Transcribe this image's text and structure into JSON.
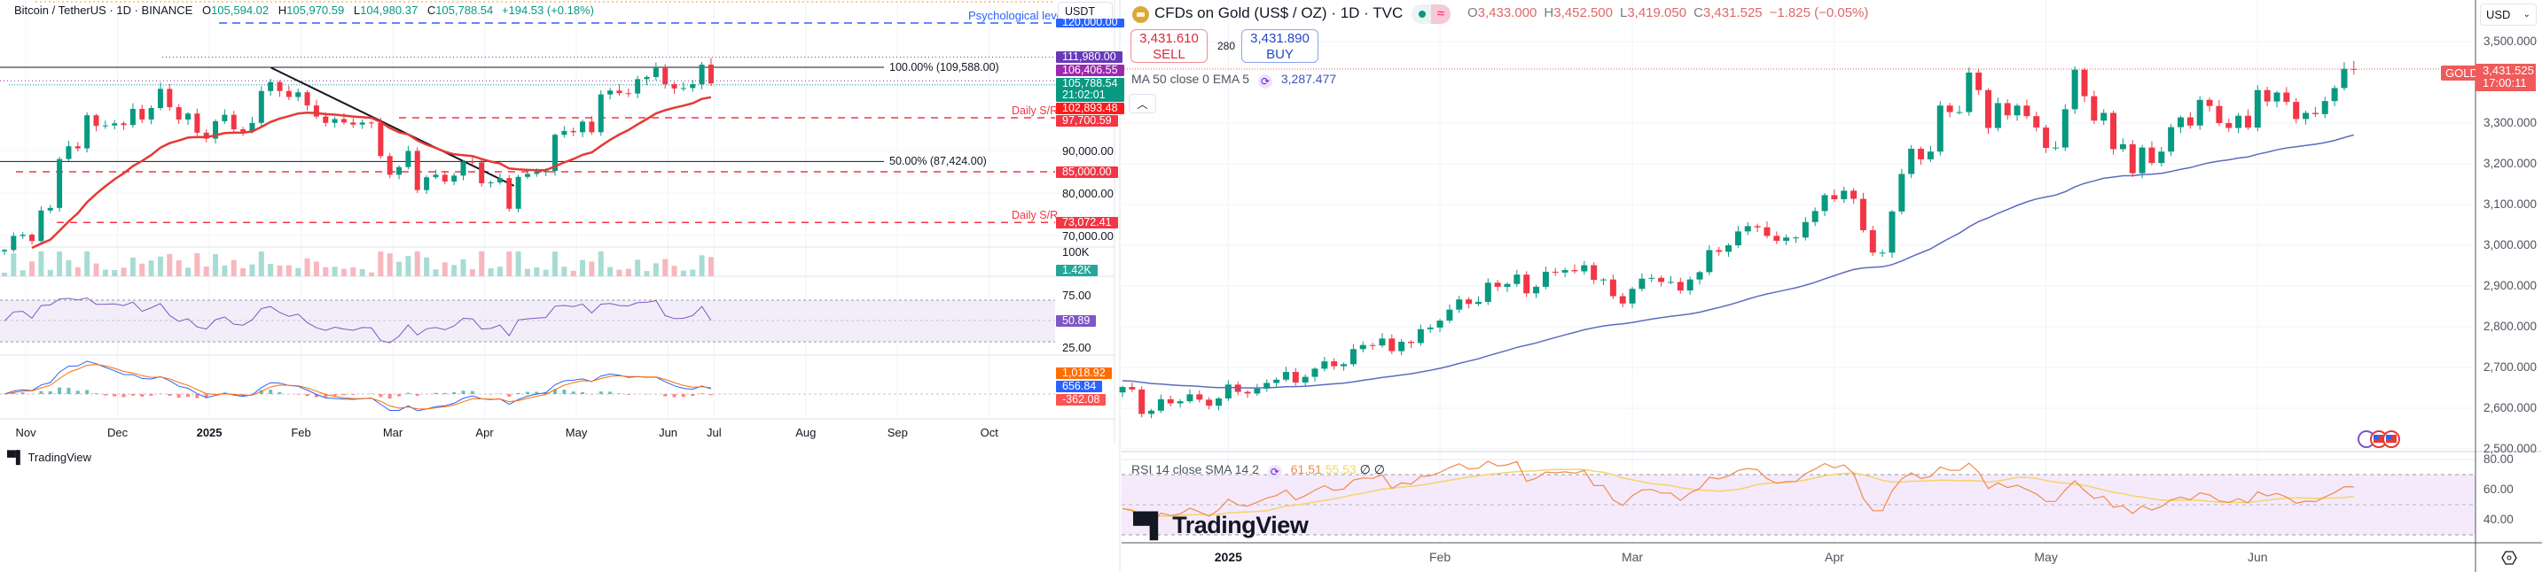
{
  "colors": {
    "up": "#089981",
    "down": "#f23645",
    "ema_red": "#e53935",
    "psych_blue": "#2962ff",
    "tag_111980": "#673ab7",
    "tag_106406": "#9c27b0",
    "tag_price": "#089981",
    "tag_ema": "#ff1a1a",
    "tag_sr": "#f23645",
    "tag_volume": "#26a69a",
    "tag_rsi": "#7e57c2",
    "tag_macd": "#ff6d00",
    "tag_signal": "#2962ff",
    "tag_hist": "#ff5252",
    "gold_ma": "#5c6bc0",
    "gold_rsi": "#f08a4b",
    "gold_rsi_sma": "#f5d36b",
    "gold_tag": "#f05a5a"
  },
  "btc_panel": {
    "header": {
      "symbol": "Bitcoin / TetherUS · 1D · BINANCE",
      "o_label": "O",
      "o": "105,594.02",
      "h_label": "H",
      "h": "105,970.59",
      "l_label": "L",
      "l": "104,980.37",
      "c_label": "C",
      "c": "105,788.54",
      "change": "+194.53 (+0.18%)"
    },
    "currency": "USDT",
    "annotations": {
      "psych": "Psychological level",
      "fib100": "100.00% (109,588.00)",
      "fib50": "50.00% (87,424.00)",
      "sr_upper": "Daily S/R",
      "sr_lower": "Daily S/R"
    },
    "price_ticks": [
      "90,000.00",
      "80,000.00",
      "70,000.00"
    ],
    "volume_tick": "100K",
    "rsi_ticks": [
      "75.00",
      "25.00"
    ],
    "tags": {
      "psych": "120,000.00",
      "high": "111,980.00",
      "p2": "106,406.55",
      "price": "105,788.54",
      "countdown": "21:02:01",
      "ema": "102,893.48",
      "sr1": "97,700.59",
      "support": "85,000.00",
      "sr2": "73,072.41",
      "volume": "1.42K",
      "rsi": "50.89",
      "macd": "1,018.92",
      "signal": "656.84",
      "hist": "-362.08"
    },
    "logo": "TradingView"
  },
  "gold_panel": {
    "title": "CFDs on Gold (US$ / OZ) · 1D · TVC",
    "ohlc": {
      "o_label": "O",
      "o": "3,433.000",
      "h_label": "H",
      "h": "3,452.500",
      "l_label": "L",
      "l": "3,419.050",
      "c_label": "C",
      "c": "3,431.525",
      "change": "−1.825 (−0.05%)"
    },
    "sell": {
      "price": "3,431.610",
      "label": "SELL"
    },
    "spread": "280",
    "buy": {
      "price": "3,431.890",
      "label": "BUY"
    },
    "ma_legend": {
      "label": "MA 50 close 0 EMA 5",
      "value": "3,287.477"
    },
    "rsi_legend": {
      "label": "RSI 14 close SMA 14 2",
      "rsi": "61.51",
      "sma": "55.53",
      "extra1": "∅",
      "extra2": "∅"
    },
    "currency": "USD",
    "price_ticks": [
      "3,500.000",
      "3,300.000",
      "3,200.000",
      "3,100.000",
      "3,000.000",
      "2,900.000",
      "2,800.000",
      "2,700.000",
      "2,600.000",
      "2,500.000"
    ],
    "rsi_ticks": [
      "80.00",
      "60.00",
      "40.00"
    ],
    "price_tag": {
      "symbol": "GOLD",
      "price": "3,431.525",
      "countdown": "17:00:11"
    },
    "logo": "TradingView",
    "icons": {
      "collapse": "chevron-up-icon",
      "settings": "settings-hexagon-icon",
      "events": "us-flag-event-icon"
    }
  },
  "chart_data": [
    {
      "type": "candlestick",
      "symbol": "BTCUSDT",
      "months": [
        {
          "label": "",
          "closes": [
            66600,
            69900,
            70200
          ]
        },
        {
          "label": "Nov",
          "closes": [
            68700,
            75900,
            76500,
            88000,
            91000,
            90500,
            98300,
            95800,
            95900,
            96400
          ]
        },
        {
          "label": "Dec",
          "closes": [
            96000,
            99800,
            97300,
            100000,
            104500,
            100200,
            97300,
            98700,
            94200,
            92800
          ]
        },
        {
          "label": "2025",
          "closes": [
            96900,
            98400,
            95000,
            94500,
            96500,
            104000,
            106100,
            104000,
            102600,
            103700
          ]
        },
        {
          "label": "Feb",
          "closes": [
            100600,
            98000,
            96500,
            97400,
            96600,
            96100,
            96600,
            96500,
            88700,
            84300
          ]
        },
        {
          "label": "Mar",
          "closes": [
            86100,
            89900,
            80700,
            83700,
            84300,
            82700,
            84100,
            87400,
            87200,
            82300
          ]
        },
        {
          "label": "Apr",
          "closes": [
            82500,
            83500,
            76300,
            83800,
            84500,
            84900,
            85200,
            93700,
            94600,
            94300
          ]
        },
        {
          "label": "May",
          "closes": [
            96800,
            94300,
            103200,
            104100,
            103500,
            103400,
            106800,
            107300,
            109400,
            105600
          ]
        },
        {
          "label": "Jun",
          "closes": [
            104600,
            104700,
            105600,
            110200,
            105788.54
          ]
        },
        {
          "label": "Jul",
          "closes": []
        },
        {
          "label": "Aug",
          "closes": []
        },
        {
          "label": "Sep",
          "closes": []
        },
        {
          "label": "Oct",
          "closes": []
        }
      ],
      "y_ticks": [
        90000,
        80000,
        70000
      ],
      "levels": {
        "psychological": 120000,
        "fib_100": 109588,
        "fib_50": 87424,
        "daily_sr": [
          97700.59,
          73072.41
        ],
        "support": 85000,
        "high": 111980,
        "level_2": 106406.55,
        "last": 105788.54
      },
      "trendline": {
        "from": {
          "date": "2025-01-20",
          "price": 109500
        },
        "to": {
          "date": "2025-04-09",
          "price": 81700
        }
      },
      "indicators": {
        "ema_last": 102893.48,
        "volume_last": "1.42K",
        "rsi_last": 50.89,
        "rsi_band": [
          30,
          70
        ],
        "macd": 1018.92,
        "signal": 656.84,
        "histogram": -362.08
      },
      "grid": true
    },
    {
      "type": "candlestick",
      "symbol": "GOLD",
      "months": [
        {
          "label": "",
          "closes": [
            2652,
            2646,
            2586,
            2594,
            2622,
            2612,
            2617,
            2634,
            2621,
            2606,
            2624
          ]
        },
        {
          "label": "2025",
          "closes": [
            2658,
            2640,
            2636,
            2648,
            2662,
            2670,
            2689,
            2663,
            2677,
            2697,
            2715,
            2703,
            2708,
            2745,
            2755,
            2754,
            2771,
            2740,
            2763,
            2760,
            2794,
            2798
          ]
        },
        {
          "label": "Feb",
          "closes": [
            2815,
            2842,
            2867,
            2856,
            2861,
            2908,
            2898,
            2905,
            2928,
            2882,
            2898,
            2935,
            2933,
            2939,
            2936,
            2951,
            2915,
            2916,
            2875,
            2857
          ]
        },
        {
          "label": "Mar",
          "closes": [
            2893,
            2918,
            2920,
            2910,
            2910,
            2889,
            2916,
            2934,
            2988,
            2984,
            3000,
            3034,
            3047,
            3044,
            3023,
            3011,
            3019,
            3019,
            3057,
            3084,
            3123
          ]
        },
        {
          "label": "Apr",
          "closes": [
            3113,
            3134,
            3114,
            3037,
            2982,
            2982,
            3083,
            3175,
            3237,
            3211,
            3230,
            3343,
            3327,
            3327,
            3424,
            3381,
            3288,
            3349,
            3319,
            3343,
            3317,
            3289
          ]
        },
        {
          "label": "May",
          "closes": [
            3239,
            3240,
            3334,
            3431,
            3366,
            3306,
            3325,
            3236,
            3248,
            3177,
            3240,
            3202,
            3230,
            3290,
            3314,
            3294,
            3357,
            3342,
            3300,
            3288,
            3318,
            3289
          ]
        },
        {
          "label": "Jun",
          "closes": [
            3381,
            3353,
            3375,
            3352,
            3310,
            3325,
            3322,
            3354,
            3386,
            3433,
            3431.525
          ]
        }
      ],
      "last_candle": {
        "open": 3433.0,
        "high": 3452.5,
        "low": 3419.05,
        "close": 3431.525
      },
      "y_ticks": [
        3500,
        3300,
        3200,
        3100,
        3000,
        2900,
        2800,
        2700,
        2600,
        2500
      ],
      "rsi_ticks": [
        80,
        60,
        40
      ],
      "indicators": {
        "ma50_last": 3287.477,
        "rsi14_last": 61.51,
        "rsi_sma14_last": 55.53,
        "rsi_band": [
          30,
          70
        ]
      },
      "grid": true
    }
  ]
}
